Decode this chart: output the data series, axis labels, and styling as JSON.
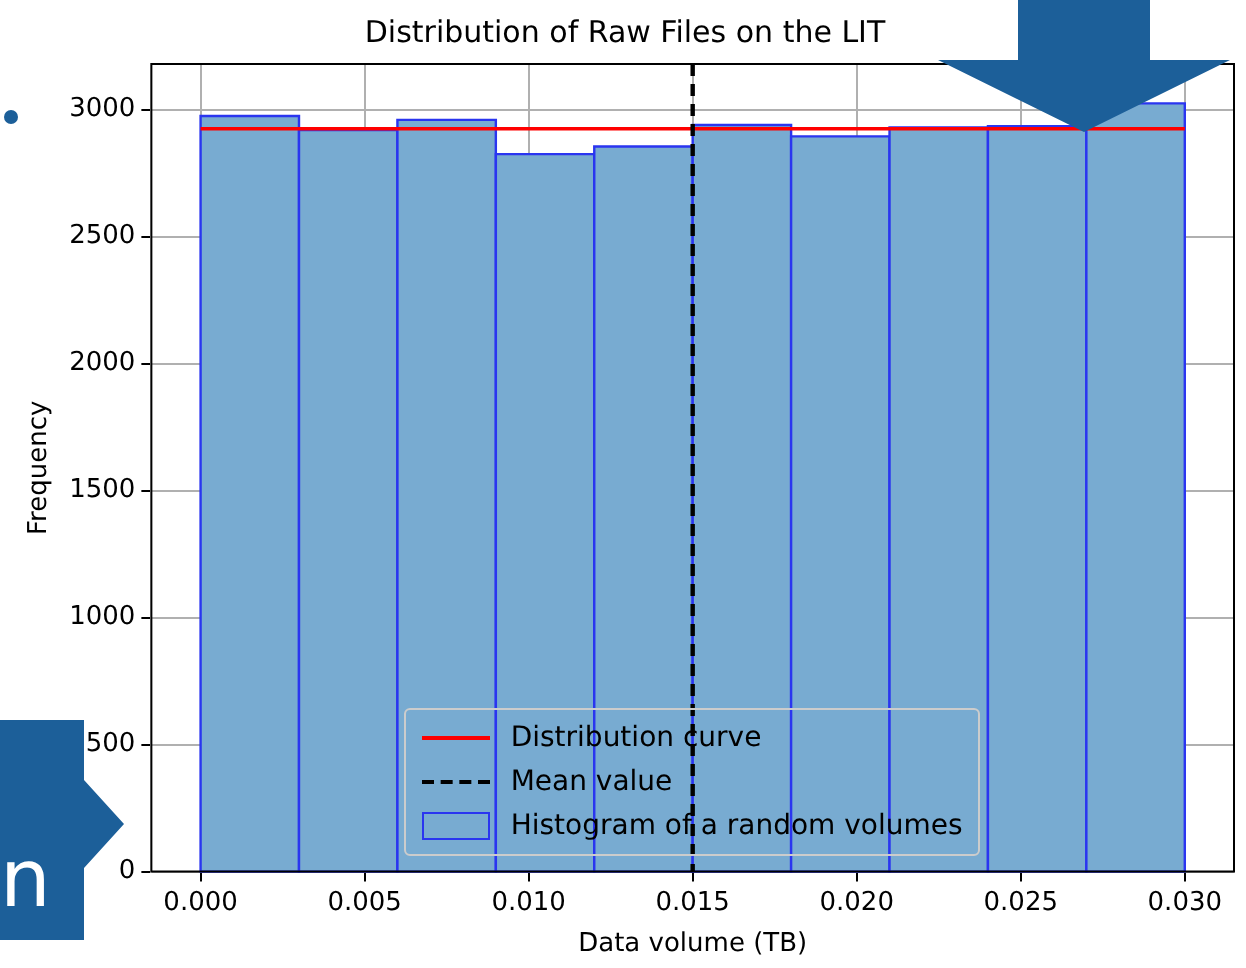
{
  "chart_data": {
    "type": "histogram",
    "title": "Distribution of Raw Files on the LIT",
    "xlabel": "Data volume (TB)",
    "ylabel": "Frequency",
    "bins": [
      0,
      0.003,
      0.006,
      0.009,
      0.012,
      0.015,
      0.018,
      0.021,
      0.024,
      0.027,
      0.03
    ],
    "series": [
      {
        "name": "Histogram of a random volumes",
        "color": "#78abd1",
        "values": [
          2975,
          2920,
          2960,
          2825,
          2855,
          2940,
          2895,
          2930,
          2935,
          3025
        ]
      },
      {
        "type": "line",
        "name": "Distribution curve",
        "color": "#ff0000",
        "x": [
          0,
          0.03
        ],
        "values": [
          2925,
          2925
        ]
      }
    ],
    "ref_lines": [
      {
        "axis": "x",
        "value": 0.015,
        "label": "Mean value",
        "color": "#000000",
        "line_style": "dashed"
      }
    ],
    "xlim": [
      -0.0015,
      0.0315
    ],
    "xticks": [
      {
        "value": 0,
        "label": "0.000"
      },
      {
        "value": 0.005,
        "label": "0.005"
      },
      {
        "value": 0.01,
        "label": "0.010"
      },
      {
        "value": 0.015,
        "label": "0.015"
      },
      {
        "value": 0.02,
        "label": "0.020"
      },
      {
        "value": 0.025,
        "label": "0.025"
      },
      {
        "value": 0.03,
        "label": "0.030"
      }
    ],
    "ylim": [
      0,
      3180
    ],
    "yticks": [
      0,
      500,
      1000,
      1500,
      2000,
      2500,
      3000
    ],
    "grid": true,
    "legend": "bottom",
    "annotations": [
      "n"
    ]
  }
}
